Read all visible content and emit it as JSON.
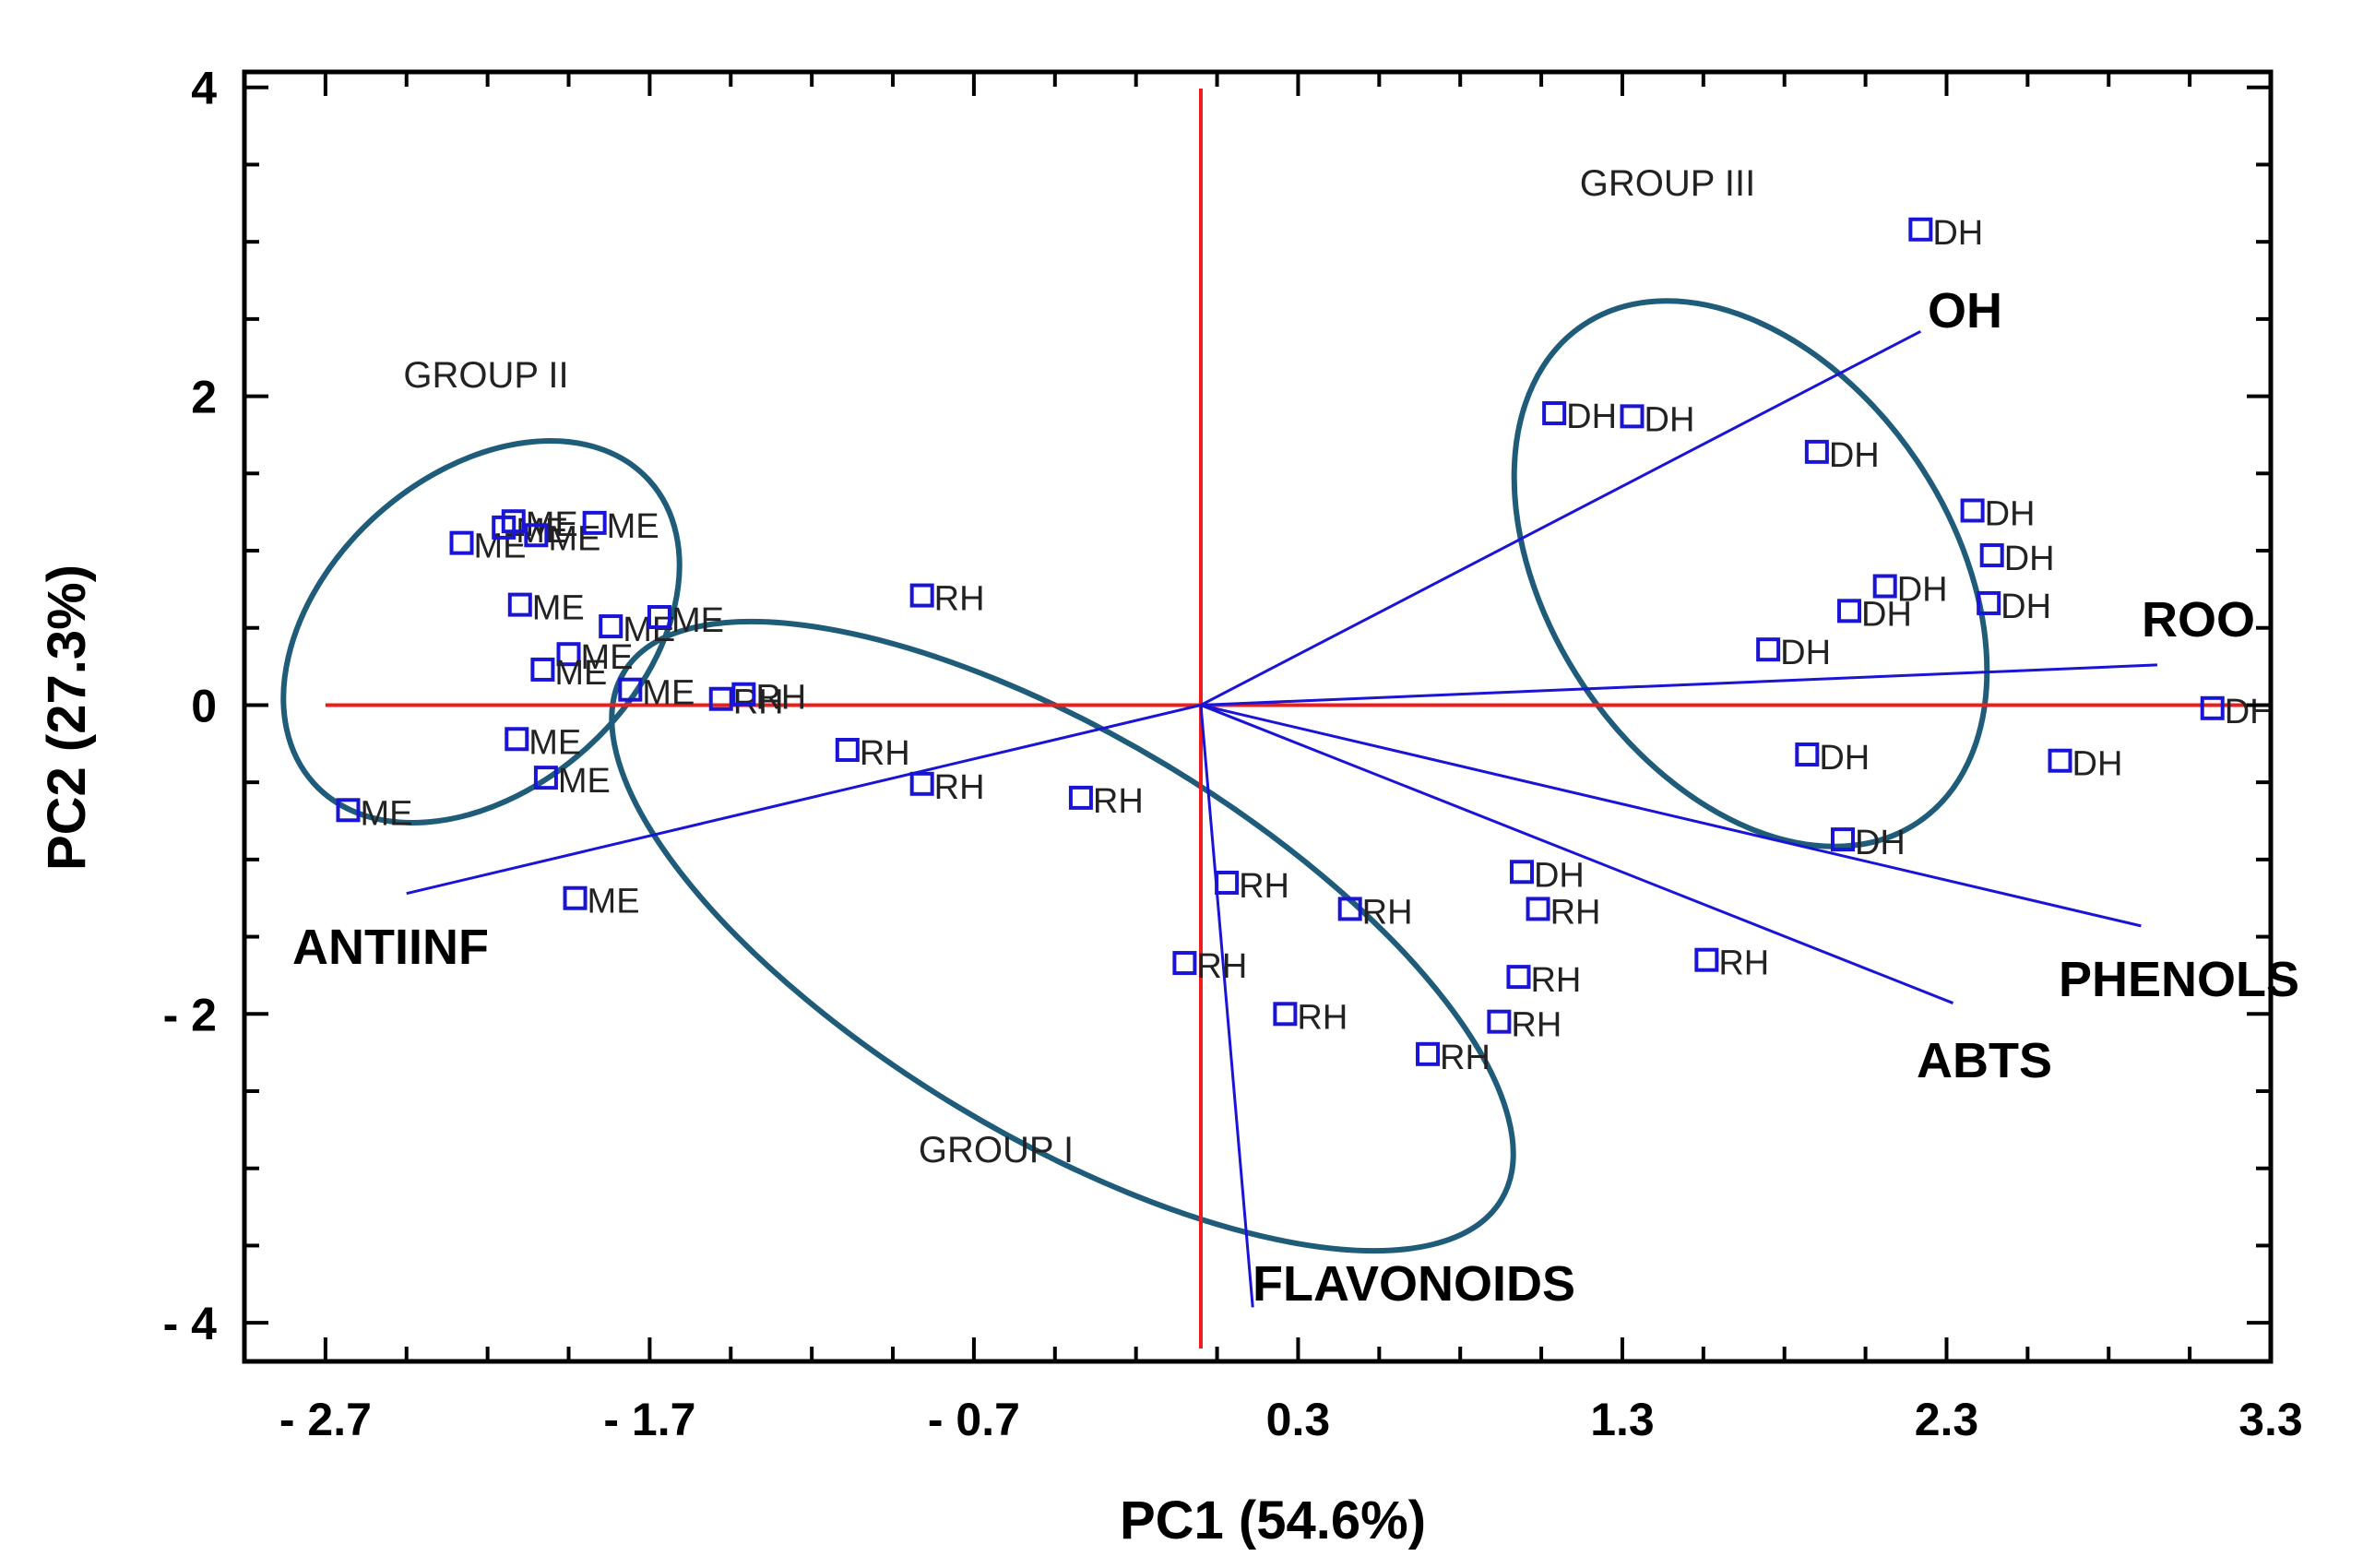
{
  "chart_data": {
    "type": "scatter",
    "subtype": "pca-biplot",
    "xlabel": "PC1 (54.6%)",
    "ylabel": "PC2 (27.3%)",
    "xlim": [
      -2.95,
      3.3
    ],
    "ylim": [
      -4.25,
      4.1
    ],
    "x_ticks": [
      -2.7,
      -1.7,
      -0.7,
      0.3,
      1.3,
      2.3,
      3.3
    ],
    "x_tick_labels": [
      "- 2.7",
      "- 1.7",
      "- 0.7",
      "0.3",
      "1.3",
      "2.3",
      "3.3"
    ],
    "y_ticks": [
      4,
      2,
      0,
      -2,
      -4
    ],
    "y_tick_labels": [
      "4",
      "2",
      "0",
      "- 2",
      "- 4"
    ],
    "colors": {
      "points": "#1a14d6",
      "loadings": "#1a14d6",
      "zero_lines": "#ee1c1c",
      "ellipses": "#1f5c7a",
      "axis": "#000000"
    },
    "loadings": [
      {
        "name": "OH",
        "x": 2.22,
        "y": 2.42
      },
      {
        "name": "ROO",
        "x": 2.95,
        "y": 0.26
      },
      {
        "name": "PHENOLS",
        "x": 2.9,
        "y": -1.43
      },
      {
        "name": "ABTS",
        "x": 2.32,
        "y": -1.93
      },
      {
        "name": "FLAVONOIDS",
        "x": 0.16,
        "y": -3.9
      },
      {
        "name": "ANTIINF",
        "x": -2.45,
        "y": -1.22
      }
    ],
    "groups": [
      {
        "name": "GROUP I"
      },
      {
        "name": "GROUP II"
      },
      {
        "name": "GROUP III"
      }
    ],
    "series": [
      {
        "name": "ME",
        "points": [
          {
            "x": -2.28,
            "y": 1.05,
            "label": "ME"
          },
          {
            "x": -2.15,
            "y": 1.15,
            "label": "ME"
          },
          {
            "x": -2.12,
            "y": 1.19,
            "label": "ME"
          },
          {
            "x": -2.05,
            "y": 1.1,
            "label": "ME"
          },
          {
            "x": -1.87,
            "y": 1.18,
            "label": "ME"
          },
          {
            "x": -2.1,
            "y": 0.65,
            "label": "ME"
          },
          {
            "x": -1.82,
            "y": 0.51,
            "label": "ME"
          },
          {
            "x": -1.67,
            "y": 0.57,
            "label": "ME"
          },
          {
            "x": -1.95,
            "y": 0.33,
            "label": "ME"
          },
          {
            "x": -2.03,
            "y": 0.23,
            "label": "ME"
          },
          {
            "x": -1.76,
            "y": 0.1,
            "label": "ME"
          },
          {
            "x": -2.11,
            "y": -0.22,
            "label": "ME"
          },
          {
            "x": -2.02,
            "y": -0.47,
            "label": "ME"
          },
          {
            "x": -2.63,
            "y": -0.68,
            "label": "ME"
          },
          {
            "x": -1.93,
            "y": -1.25,
            "label": "ME"
          }
        ]
      },
      {
        "name": "RH",
        "points": [
          {
            "x": -1.48,
            "y": 0.04,
            "label": "RH"
          },
          {
            "x": -1.41,
            "y": 0.07,
            "label": "RH"
          },
          {
            "x": -0.86,
            "y": 0.71,
            "label": "RH"
          },
          {
            "x": -1.09,
            "y": -0.29,
            "label": "RH"
          },
          {
            "x": -0.86,
            "y": -0.51,
            "label": "RH"
          },
          {
            "x": -0.37,
            "y": -0.6,
            "label": "RH"
          },
          {
            "x": 0.08,
            "y": -1.15,
            "label": "RH"
          },
          {
            "x": -0.05,
            "y": -1.67,
            "label": "RH"
          },
          {
            "x": 0.26,
            "y": -2.0,
            "label": "RH"
          },
          {
            "x": 0.46,
            "y": -1.32,
            "label": "RH"
          },
          {
            "x": 0.7,
            "y": -2.26,
            "label": "RH"
          },
          {
            "x": 0.92,
            "y": -2.05,
            "label": "RH"
          },
          {
            "x": 1.04,
            "y": -1.32,
            "label": "RH"
          },
          {
            "x": 0.98,
            "y": -1.76,
            "label": "RH"
          },
          {
            "x": 1.56,
            "y": -1.65,
            "label": "RH"
          }
        ]
      },
      {
        "name": "DH",
        "points": [
          {
            "x": 2.22,
            "y": 3.08,
            "label": "DH"
          },
          {
            "x": 1.09,
            "y": 1.89,
            "label": "DH"
          },
          {
            "x": 1.33,
            "y": 1.87,
            "label": "DH"
          },
          {
            "x": 1.9,
            "y": 1.64,
            "label": "DH"
          },
          {
            "x": 2.38,
            "y": 1.26,
            "label": "DH"
          },
          {
            "x": 2.44,
            "y": 0.97,
            "label": "DH"
          },
          {
            "x": 2.11,
            "y": 0.77,
            "label": "DH"
          },
          {
            "x": 2.0,
            "y": 0.61,
            "label": "DH"
          },
          {
            "x": 2.43,
            "y": 0.66,
            "label": "DH"
          },
          {
            "x": 1.75,
            "y": 0.36,
            "label": "DH"
          },
          {
            "x": 1.87,
            "y": -0.32,
            "label": "DH"
          },
          {
            "x": 2.65,
            "y": -0.36,
            "label": "DH"
          },
          {
            "x": 3.12,
            "y": -0.02,
            "label": "DH"
          },
          {
            "x": 1.98,
            "y": -0.87,
            "label": "DH"
          },
          {
            "x": 0.99,
            "y": -1.08,
            "label": "DH"
          }
        ]
      }
    ]
  }
}
